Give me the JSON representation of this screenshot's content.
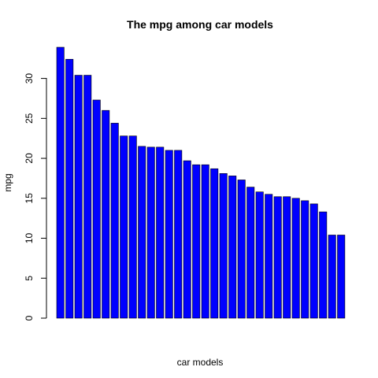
{
  "chart_data": {
    "type": "bar",
    "title": "The mpg among car models",
    "xlabel": "car models",
    "ylabel": "mpg",
    "ylim": [
      0,
      34
    ],
    "yticks": [
      0,
      5,
      10,
      15,
      20,
      25,
      30
    ],
    "bar_color": "#0000ff",
    "values": [
      33.9,
      32.4,
      30.4,
      30.4,
      27.3,
      26.0,
      24.4,
      22.8,
      22.8,
      21.5,
      21.4,
      21.4,
      21.0,
      21.0,
      19.7,
      19.2,
      19.2,
      18.7,
      18.1,
      17.8,
      17.3,
      16.4,
      15.8,
      15.5,
      15.2,
      15.2,
      15.0,
      14.7,
      14.3,
      13.3,
      10.4,
      10.4
    ]
  }
}
